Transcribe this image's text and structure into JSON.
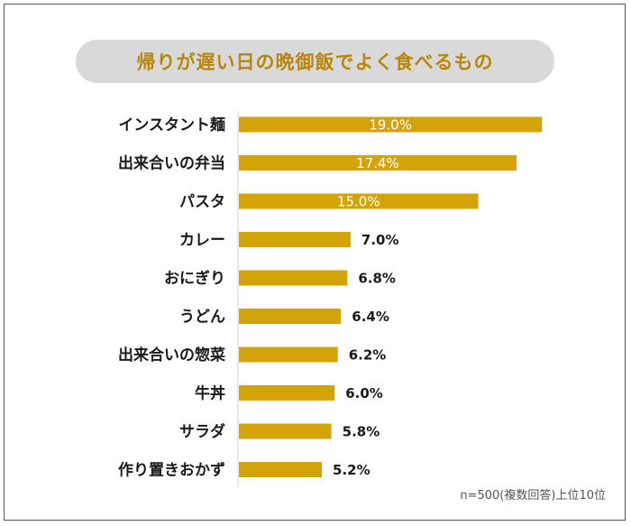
{
  "title": "帰りが遅い日の晩御飯でよく食べるもの",
  "footnote": "n=500(複数回答)上位10位",
  "colors": {
    "bar": "#d4a30a",
    "title_text": "#b8860b",
    "title_bg": "#d9d9d9",
    "inside_label": "#ffffff",
    "outside_label": "#1a1a1a"
  },
  "chart_data": {
    "type": "bar",
    "orientation": "horizontal",
    "title": "帰りが遅い日の晩御飯でよく食べるもの",
    "categories": [
      "インスタント麺",
      "出来合いの弁当",
      "パスタ",
      "カレー",
      "おにぎり",
      "うどん",
      "出来合いの惣菜",
      "牛丼",
      "サラダ",
      "作り置きおかず"
    ],
    "values": [
      19.0,
      17.4,
      15.0,
      7.0,
      6.8,
      6.4,
      6.2,
      6.0,
      5.8,
      5.2
    ],
    "value_labels": [
      "19.0%",
      "17.4%",
      "15.0%",
      "7.0%",
      "6.8%",
      "6.4%",
      "6.2%",
      "6.0%",
      "5.8%",
      "5.2%"
    ],
    "unit": "%",
    "xlim": [
      0,
      20
    ],
    "grid": false,
    "legend": "none"
  }
}
